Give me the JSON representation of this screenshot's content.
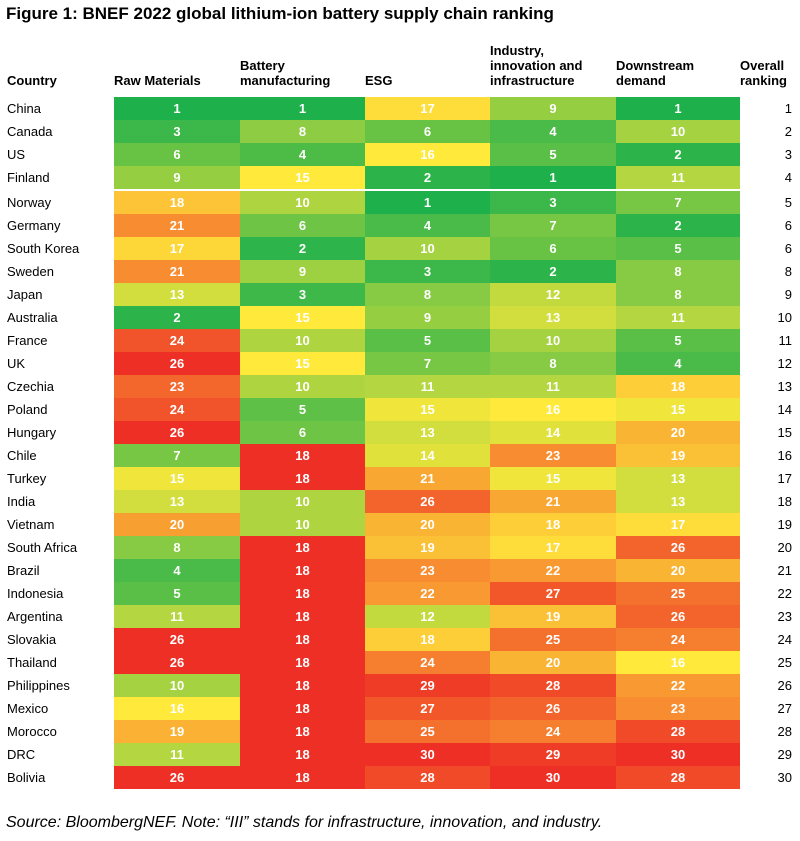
{
  "chart_data": {
    "type": "heatmap",
    "title": "Figure 1: BNEF 2022 global lithium-ion battery supply chain ranking",
    "columns": [
      "Country",
      "Raw Materials",
      "Battery manufacturing",
      "ESG",
      "Industry, innovation and infrastructure",
      "Downstream demand",
      "Overall ranking"
    ],
    "color_scale": {
      "low": "#1db04b",
      "mid": "#ffe93a",
      "high": "#ee2f26"
    },
    "rows": [
      [
        "China",
        1,
        1,
        17,
        9,
        1,
        1
      ],
      [
        "Canada",
        3,
        8,
        6,
        4,
        10,
        2
      ],
      [
        "US",
        6,
        4,
        16,
        5,
        2,
        3
      ],
      [
        "Finland",
        9,
        15,
        2,
        1,
        11,
        4
      ],
      [
        "Norway",
        18,
        10,
        1,
        3,
        7,
        5
      ],
      [
        "Germany",
        21,
        6,
        4,
        7,
        2,
        6
      ],
      [
        "South Korea",
        17,
        2,
        10,
        6,
        5,
        6
      ],
      [
        "Sweden",
        21,
        9,
        3,
        2,
        8,
        8
      ],
      [
        "Japan",
        13,
        3,
        8,
        12,
        8,
        9
      ],
      [
        "Australia",
        2,
        15,
        9,
        13,
        11,
        10
      ],
      [
        "France",
        24,
        10,
        5,
        10,
        5,
        11
      ],
      [
        "UK",
        26,
        15,
        7,
        8,
        4,
        12
      ],
      [
        "Czechia",
        23,
        10,
        11,
        11,
        18,
        13
      ],
      [
        "Poland",
        24,
        5,
        15,
        16,
        15,
        14
      ],
      [
        "Hungary",
        26,
        6,
        13,
        14,
        20,
        15
      ],
      [
        "Chile",
        7,
        18,
        14,
        23,
        19,
        16
      ],
      [
        "Turkey",
        15,
        18,
        21,
        15,
        13,
        17
      ],
      [
        "India",
        13,
        10,
        26,
        21,
        13,
        18
      ],
      [
        "Vietnam",
        20,
        10,
        20,
        18,
        17,
        19
      ],
      [
        "South Africa",
        8,
        18,
        19,
        17,
        26,
        20
      ],
      [
        "Brazil",
        4,
        18,
        23,
        22,
        20,
        21
      ],
      [
        "Indonesia",
        5,
        18,
        22,
        27,
        25,
        22
      ],
      [
        "Argentina",
        11,
        18,
        12,
        19,
        26,
        23
      ],
      [
        "Slovakia",
        26,
        18,
        18,
        25,
        24,
        24
      ],
      [
        "Thailand",
        26,
        18,
        24,
        20,
        16,
        25
      ],
      [
        "Philippines",
        10,
        18,
        29,
        28,
        22,
        26
      ],
      [
        "Mexico",
        16,
        18,
        27,
        26,
        23,
        27
      ],
      [
        "Morocco",
        19,
        18,
        25,
        24,
        28,
        28
      ],
      [
        "DRC",
        11,
        18,
        30,
        29,
        30,
        29
      ],
      [
        "Bolivia",
        26,
        18,
        28,
        30,
        28,
        30
      ]
    ]
  },
  "source": "Source: BloombergNEF. Note: “III” stands for infrastructure, innovation, and industry."
}
